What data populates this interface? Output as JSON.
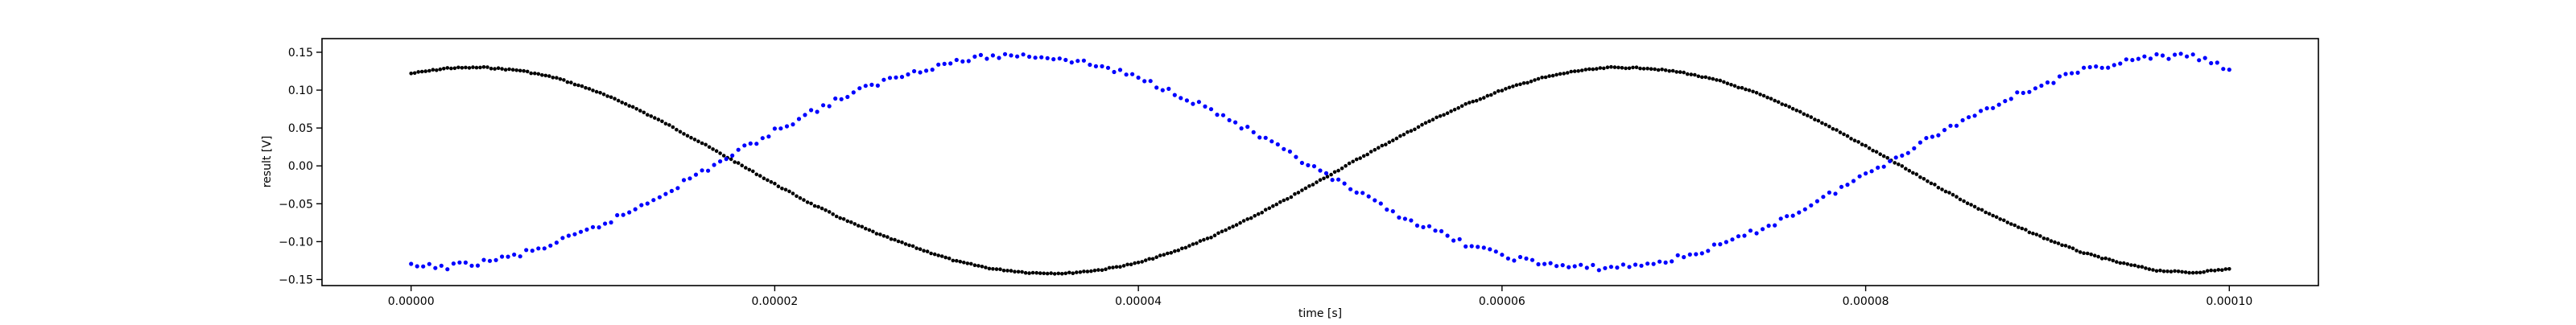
{
  "chart_data": {
    "type": "scatter",
    "title": "",
    "xlabel": "time [s]",
    "ylabel": "result [V]",
    "xlim": [
      -4.9e-06,
      0.0001049
    ],
    "ylim": [
      -0.158,
      0.168
    ],
    "xticks": [
      0,
      2e-05,
      4e-05,
      6e-05,
      8e-05,
      0.0001
    ],
    "xtick_labels": [
      "0.00000",
      "0.00002",
      "0.00004",
      "0.00006",
      "0.00008",
      "0.00010"
    ],
    "yticks": [
      -0.15,
      -0.1,
      -0.05,
      0.0,
      0.05,
      0.1,
      0.15
    ],
    "ytick_labels": [
      "−0.15",
      "−0.10",
      "−0.05",
      "0.00",
      "0.05",
      "0.10",
      "0.15"
    ],
    "grid": false,
    "legend": "none",
    "series": [
      {
        "color": "#000000",
        "x": [
          0,
          2e-06,
          4e-06,
          6e-06,
          8e-06,
          1e-05,
          1.2e-05,
          1.4e-05,
          1.6e-05,
          1.8e-05,
          2e-05,
          2.2e-05,
          2.4e-05,
          2.6e-05,
          2.8e-05,
          3e-05,
          3.2e-05,
          3.4e-05,
          3.6e-05,
          3.8e-05,
          4e-05,
          4.2e-05,
          4.4e-05,
          4.6e-05,
          4.8e-05,
          5e-05,
          5.2e-05,
          5.4e-05,
          5.6e-05,
          5.8e-05,
          6e-05,
          6.2e-05,
          6.4e-05,
          6.6e-05,
          6.8e-05,
          7e-05,
          7.2e-05,
          7.4e-05,
          7.6e-05,
          7.8e-05,
          8e-05,
          8.2e-05,
          8.4e-05,
          8.6e-05,
          8.8e-05,
          9e-05,
          9.2e-05,
          9.4e-05,
          9.6e-05,
          9.8e-05,
          0.0001
        ],
        "y": [
          0.122,
          0.129,
          0.13,
          0.126,
          0.116,
          0.1,
          0.08,
          0.056,
          0.03,
          0.003,
          -0.024,
          -0.05,
          -0.073,
          -0.093,
          -0.11,
          -0.126,
          -0.136,
          -0.141,
          -0.142,
          -0.137,
          -0.128,
          -0.113,
          -0.094,
          -0.071,
          -0.046,
          -0.019,
          0.008,
          0.034,
          0.059,
          0.081,
          0.1,
          0.115,
          0.125,
          0.13,
          0.129,
          0.123,
          0.112,
          0.096,
          0.076,
          0.052,
          0.026,
          -0.001,
          -0.028,
          -0.054,
          -0.077,
          -0.097,
          -0.115,
          -0.128,
          -0.138,
          -0.141,
          -0.136
        ]
      },
      {
        "color": "#0000ff",
        "x": [
          0,
          2e-06,
          4e-06,
          6e-06,
          8e-06,
          1e-05,
          1.2e-05,
          1.4e-05,
          1.6e-05,
          1.8e-05,
          2e-05,
          2.2e-05,
          2.4e-05,
          2.6e-05,
          2.8e-05,
          3e-05,
          3.2e-05,
          3.4e-05,
          3.6e-05,
          3.8e-05,
          4e-05,
          4.2e-05,
          4.4e-05,
          4.6e-05,
          4.8e-05,
          5e-05,
          5.2e-05,
          5.4e-05,
          5.6e-05,
          5.8e-05,
          6e-05,
          6.2e-05,
          6.4e-05,
          6.6e-05,
          6.8e-05,
          7e-05,
          7.2e-05,
          7.4e-05,
          7.6e-05,
          7.8e-05,
          8e-05,
          8.2e-05,
          8.4e-05,
          8.6e-05,
          8.8e-05,
          9e-05,
          9.2e-05,
          9.4e-05,
          9.6e-05,
          9.8e-05,
          0.0001
        ],
        "y": [
          -0.133,
          -0.133,
          -0.127,
          -0.117,
          -0.102,
          -0.083,
          -0.061,
          -0.035,
          -0.008,
          0.019,
          0.046,
          0.071,
          0.093,
          0.112,
          0.127,
          0.138,
          0.145,
          0.146,
          0.141,
          0.131,
          0.116,
          0.097,
          0.074,
          0.048,
          0.02,
          -0.008,
          -0.035,
          -0.061,
          -0.083,
          -0.103,
          -0.118,
          -0.128,
          -0.134,
          -0.134,
          -0.13,
          -0.12,
          -0.105,
          -0.086,
          -0.064,
          -0.038,
          -0.011,
          0.016,
          0.043,
          0.068,
          0.091,
          0.11,
          0.126,
          0.137,
          0.144,
          0.145,
          0.127
        ]
      }
    ]
  }
}
